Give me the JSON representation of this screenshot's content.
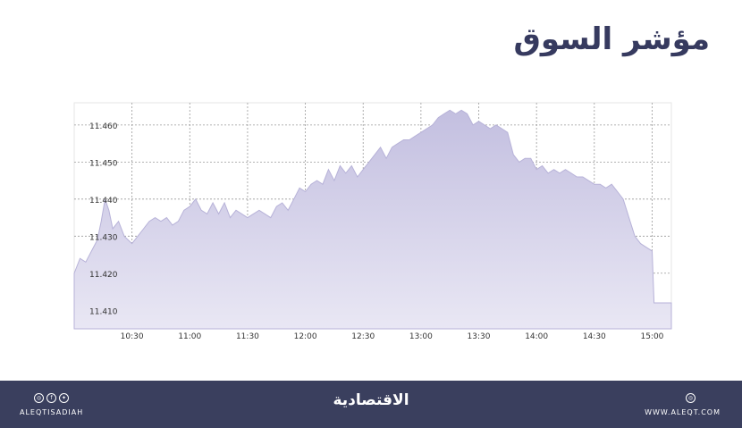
{
  "title": "مؤشر السوق",
  "footer": {
    "brand": "الاقتصادية",
    "handle": "ALEQTISADIAH",
    "site": "WWW.ALEQT.COM",
    "social_icons": [
      "instagram-icon",
      "facebook-icon",
      "twitter-icon"
    ],
    "site_icon": "globe-icon"
  },
  "chart_data": {
    "type": "area",
    "title": "",
    "xlabel": "",
    "ylabel": "",
    "ylim": [
      11.405,
      11.466
    ],
    "xlim": [
      "10:00",
      "15:10"
    ],
    "grid": true,
    "y_ticks": [
      "11.410",
      "11.420",
      "11.430",
      "11.440",
      "11.450",
      "11.460"
    ],
    "x_ticks": [
      "10:30",
      "11:00",
      "11:30",
      "12:00",
      "12:30",
      "13:00",
      "13:30",
      "14:00",
      "14:30",
      "15:00"
    ],
    "colors": {
      "fill": "#c9c6e3",
      "fill_light": "#e4e2f2",
      "line": "#a9a4cf",
      "grid": "#9a9a9a",
      "footer": "#3a3f5e",
      "title": "#363a5f"
    },
    "series": [
      {
        "x": [
          "10:00",
          "10:03",
          "10:06",
          "10:09",
          "10:12",
          "10:14",
          "10:16",
          "10:18",
          "10:20",
          "10:23",
          "10:26",
          "10:30",
          "10:33",
          "10:36",
          "10:39",
          "10:42",
          "10:45",
          "10:48",
          "10:51",
          "10:54",
          "10:57",
          "11:00",
          "11:03",
          "11:06",
          "11:09",
          "11:12",
          "11:15",
          "11:18",
          "11:21",
          "11:24",
          "11:27",
          "11:30",
          "11:33",
          "11:36",
          "11:39",
          "11:42",
          "11:45",
          "11:48",
          "11:51",
          "11:54",
          "11:57",
          "12:00",
          "12:03",
          "12:06",
          "12:09",
          "12:12",
          "12:15",
          "12:18",
          "12:21",
          "12:24",
          "12:27",
          "12:30",
          "12:33",
          "12:36",
          "12:39",
          "12:42",
          "12:45",
          "12:48",
          "12:51",
          "12:54",
          "12:57",
          "13:00",
          "13:03",
          "13:06",
          "13:09",
          "13:12",
          "13:15",
          "13:18",
          "13:21",
          "13:24",
          "13:27",
          "13:30",
          "13:33",
          "13:36",
          "13:39",
          "13:42",
          "13:45",
          "13:48",
          "13:51",
          "13:54",
          "13:57",
          "14:00",
          "14:03",
          "14:06",
          "14:09",
          "14:12",
          "14:15",
          "14:18",
          "14:21",
          "14:24",
          "14:27",
          "14:30",
          "14:33",
          "14:36",
          "14:39",
          "14:42",
          "14:45",
          "14:48",
          "14:51",
          "14:54",
          "14:57",
          "15:00",
          "15:01",
          "15:10"
        ],
        "values": [
          11.42,
          11.424,
          11.423,
          11.426,
          11.429,
          11.434,
          11.44,
          11.437,
          11.432,
          11.434,
          11.43,
          11.428,
          11.43,
          11.432,
          11.434,
          11.435,
          11.434,
          11.435,
          11.433,
          11.434,
          11.437,
          11.438,
          11.44,
          11.437,
          11.436,
          11.439,
          11.436,
          11.439,
          11.435,
          11.437,
          11.436,
          11.435,
          11.436,
          11.437,
          11.436,
          11.435,
          11.438,
          11.439,
          11.437,
          11.44,
          11.443,
          11.442,
          11.444,
          11.445,
          11.444,
          11.448,
          11.445,
          11.449,
          11.447,
          11.449,
          11.446,
          11.448,
          11.45,
          11.452,
          11.454,
          11.451,
          11.454,
          11.455,
          11.456,
          11.456,
          11.457,
          11.458,
          11.459,
          11.46,
          11.462,
          11.463,
          11.464,
          11.463,
          11.464,
          11.463,
          11.46,
          11.461,
          11.46,
          11.459,
          11.46,
          11.459,
          11.458,
          11.452,
          11.45,
          11.451,
          11.451,
          11.448,
          11.449,
          11.447,
          11.448,
          11.447,
          11.448,
          11.447,
          11.446,
          11.446,
          11.445,
          11.444,
          11.444,
          11.443,
          11.444,
          11.442,
          11.44,
          11.435,
          11.43,
          11.428,
          11.427,
          11.426,
          11.412,
          11.412
        ]
      }
    ]
  }
}
